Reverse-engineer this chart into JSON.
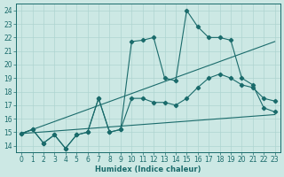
{
  "xlabel": "Humidex (Indice chaleur)",
  "xlim": [
    -0.5,
    23.5
  ],
  "ylim": [
    13.5,
    24.5
  ],
  "xticks": [
    0,
    1,
    2,
    3,
    4,
    5,
    6,
    7,
    8,
    9,
    10,
    11,
    12,
    13,
    14,
    15,
    16,
    17,
    18,
    19,
    20,
    21,
    22,
    23
  ],
  "yticks": [
    14,
    15,
    16,
    17,
    18,
    19,
    20,
    21,
    22,
    23,
    24
  ],
  "background_color": "#cce8e4",
  "line_color": "#1a6b6b",
  "grid_color": "#aed4d0",
  "curve1_x": [
    0,
    1,
    2,
    3,
    4,
    5,
    6,
    7,
    8,
    9,
    10,
    11,
    12,
    13,
    14,
    15,
    16,
    17,
    18,
    19,
    20,
    21,
    22,
    23
  ],
  "curve1_y": [
    14.9,
    15.2,
    14.2,
    14.8,
    13.8,
    14.8,
    15.0,
    17.5,
    15.0,
    15.2,
    21.7,
    21.8,
    22.0,
    19.0,
    18.8,
    24.0,
    22.8,
    22.0,
    22.0,
    21.8,
    19.0,
    18.5,
    16.8,
    16.5
  ],
  "curve2_x": [
    0,
    1,
    2,
    3,
    4,
    5,
    6,
    7,
    8,
    9,
    10,
    11,
    12,
    13,
    14,
    15,
    16,
    17,
    18,
    19,
    20,
    21,
    22,
    23
  ],
  "curve2_y": [
    14.9,
    15.2,
    14.2,
    14.8,
    13.8,
    14.8,
    15.0,
    17.5,
    15.0,
    15.2,
    17.5,
    17.5,
    17.2,
    17.2,
    17.0,
    17.5,
    18.3,
    19.0,
    19.3,
    19.0,
    18.5,
    18.3,
    17.5,
    17.3
  ],
  "trend1_x": [
    0,
    23
  ],
  "trend1_y": [
    14.9,
    16.3
  ],
  "trend2_x": [
    0,
    23
  ],
  "trend2_y": [
    14.9,
    21.7
  ]
}
